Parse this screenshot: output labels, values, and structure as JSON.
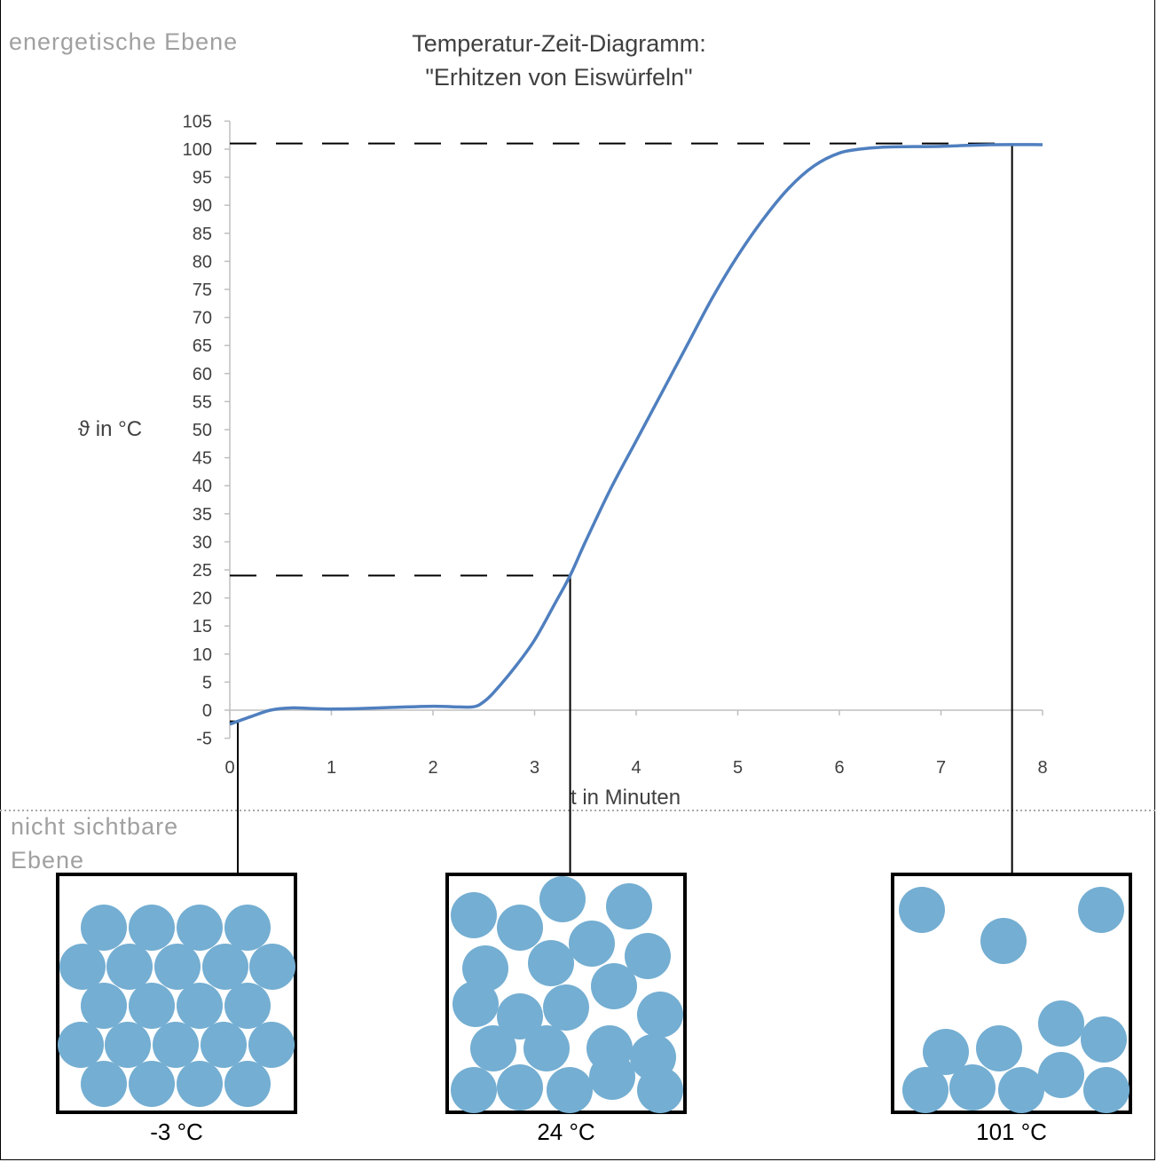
{
  "levels": {
    "top": "energetische  Ebene",
    "bottom_line1": "nicht sichtbare",
    "bottom_line2": "Ebene"
  },
  "colors": {
    "curve": "#4f7fbf",
    "particle": "#74aed2",
    "axis": "#bfbfbf",
    "text": "#404040"
  },
  "chart_data": {
    "type": "line",
    "title_line1": "Temperatur-Zeit-Diagramm:",
    "title_line2": "\"Erhitzen von Eiswürfeln\"",
    "xlabel": "t in Minuten",
    "ylabel": "ϑ in °C",
    "xlim": [
      0,
      8
    ],
    "ylim": [
      -5,
      105
    ],
    "xticks": [
      0,
      1,
      2,
      3,
      4,
      5,
      6,
      7,
      8
    ],
    "yticks": [
      -5,
      0,
      5,
      10,
      15,
      20,
      25,
      30,
      35,
      40,
      45,
      50,
      55,
      60,
      65,
      70,
      75,
      80,
      85,
      90,
      95,
      100,
      105
    ],
    "series": [
      {
        "points": [
          [
            0,
            -2.5
          ],
          [
            0.2,
            -1.2
          ],
          [
            0.4,
            0.0
          ],
          [
            0.6,
            0.4
          ],
          [
            0.8,
            0.3
          ],
          [
            1.0,
            0.2
          ],
          [
            1.3,
            0.3
          ],
          [
            1.6,
            0.5
          ],
          [
            2.0,
            0.7
          ],
          [
            2.2,
            0.6
          ],
          [
            2.4,
            0.6
          ],
          [
            2.5,
            1.5
          ],
          [
            2.6,
            3.2
          ],
          [
            2.8,
            7.5
          ],
          [
            3.0,
            12.5
          ],
          [
            3.2,
            19.0
          ],
          [
            3.35,
            24.0
          ],
          [
            3.5,
            30.0
          ],
          [
            3.75,
            39.5
          ],
          [
            4.0,
            48.0
          ],
          [
            4.25,
            56.5
          ],
          [
            4.5,
            65.0
          ],
          [
            4.75,
            73.5
          ],
          [
            5.0,
            81.0
          ],
          [
            5.25,
            87.5
          ],
          [
            5.5,
            93.0
          ],
          [
            5.75,
            97.0
          ],
          [
            6.0,
            99.3
          ],
          [
            6.25,
            100.1
          ],
          [
            6.5,
            100.4
          ],
          [
            7.0,
            100.5
          ],
          [
            7.5,
            100.8
          ],
          [
            8.0,
            100.8
          ]
        ]
      }
    ],
    "reference_lines": [
      {
        "x": 3.35,
        "y": 24
      },
      {
        "x": 7.7,
        "y": 101
      },
      {
        "x": 0,
        "y": 1
      }
    ]
  },
  "states": [
    {
      "label": "-3 °C",
      "x": 0.08,
      "particles": [
        [
          52,
          60
        ],
        [
          106,
          60
        ],
        [
          160,
          60
        ],
        [
          214,
          60
        ],
        [
          28,
          104
        ],
        [
          81,
          104
        ],
        [
          135,
          104
        ],
        [
          189,
          104
        ],
        [
          242,
          104
        ],
        [
          52,
          148
        ],
        [
          106,
          148
        ],
        [
          160,
          148
        ],
        [
          214,
          148
        ],
        [
          26,
          192
        ],
        [
          79,
          192
        ],
        [
          133,
          192
        ],
        [
          187,
          192
        ],
        [
          241,
          192
        ],
        [
          52,
          236
        ],
        [
          106,
          236
        ],
        [
          160,
          236
        ],
        [
          214,
          236
        ]
      ]
    },
    {
      "label": "24 °C",
      "x": 3.35,
      "particles": [
        [
          30,
          46
        ],
        [
          82,
          60
        ],
        [
          130,
          28
        ],
        [
          205,
          36
        ],
        [
          163,
          78
        ],
        [
          43,
          106
        ],
        [
          117,
          100
        ],
        [
          226,
          92
        ],
        [
          188,
          126
        ],
        [
          32,
          146
        ],
        [
          82,
          160
        ],
        [
          134,
          150
        ],
        [
          240,
          158
        ],
        [
          183,
          196
        ],
        [
          52,
          196
        ],
        [
          112,
          196
        ],
        [
          232,
          206
        ],
        [
          30,
          243
        ],
        [
          82,
          240
        ],
        [
          138,
          243
        ],
        [
          186,
          228
        ],
        [
          240,
          243
        ]
      ]
    },
    {
      "label": "101 °C",
      "x": 7.7,
      "particles": [
        [
          33,
          40
        ],
        [
          125,
          75
        ],
        [
          235,
          40
        ],
        [
          190,
          168
        ],
        [
          60,
          200
        ],
        [
          120,
          196
        ],
        [
          238,
          186
        ],
        [
          190,
          226
        ],
        [
          37,
          243
        ],
        [
          90,
          240
        ],
        [
          145,
          243
        ],
        [
          241,
          243
        ]
      ]
    }
  ]
}
